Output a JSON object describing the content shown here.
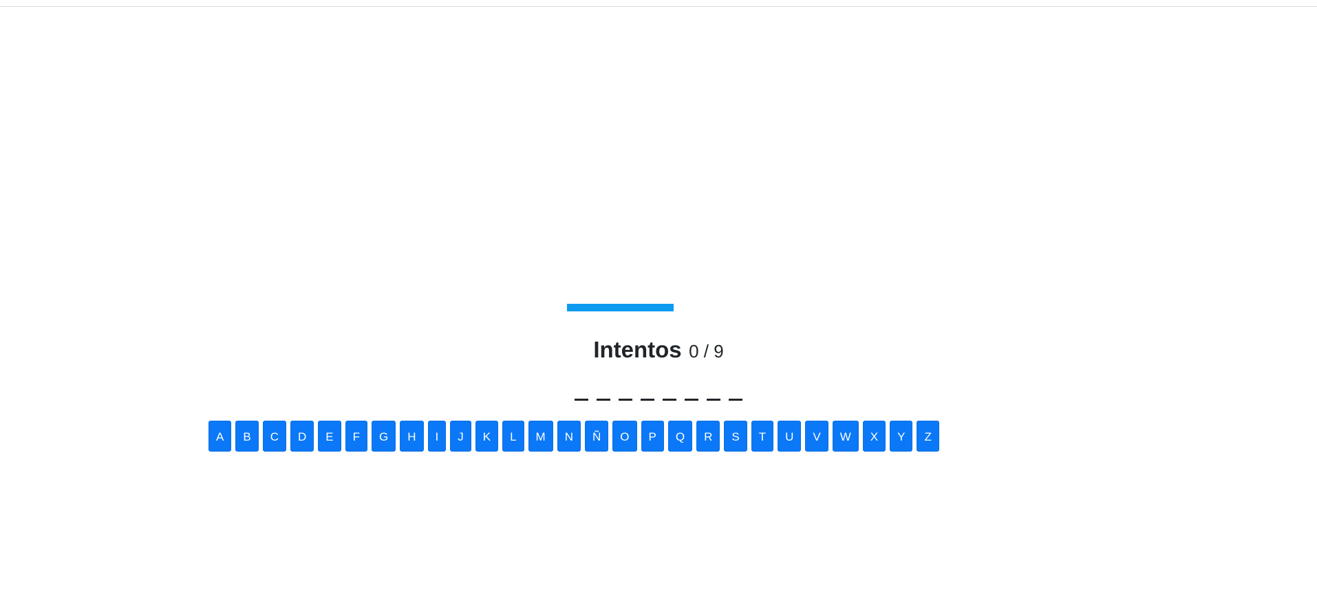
{
  "colors": {
    "accent": "#0b78f7",
    "gallows": "#0d9bf0",
    "text": "#212529"
  },
  "attempts": {
    "title": "Intentos",
    "count": "0 / 9"
  },
  "word": {
    "slots": [
      "_",
      "_",
      "_",
      "_",
      "_",
      "_",
      "_",
      "_"
    ]
  },
  "keyboard": {
    "letters": [
      "A",
      "B",
      "C",
      "D",
      "E",
      "F",
      "G",
      "H",
      "I",
      "J",
      "K",
      "L",
      "M",
      "N",
      "Ñ",
      "O",
      "P",
      "Q",
      "R",
      "S",
      "T",
      "U",
      "V",
      "W",
      "X",
      "Y",
      "Z"
    ]
  }
}
